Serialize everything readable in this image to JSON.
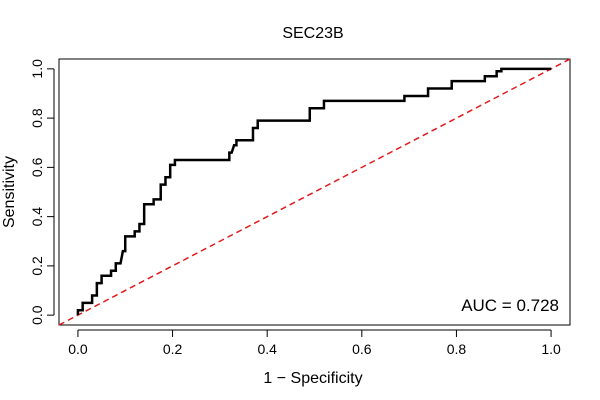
{
  "chart_data": {
    "type": "line",
    "title": "SEC23B",
    "xlabel": "1 − Specificity",
    "ylabel": "Sensitivity",
    "xlim": [
      -0.04,
      1.04
    ],
    "ylim": [
      -0.04,
      1.04
    ],
    "x_ticks": [
      0.0,
      0.2,
      0.4,
      0.6,
      0.8,
      1.0
    ],
    "y_ticks": [
      0.0,
      0.2,
      0.4,
      0.6,
      0.8,
      1.0
    ],
    "x_tick_labels": [
      "0.0",
      "0.2",
      "0.4",
      "0.6",
      "0.8",
      "1.0"
    ],
    "y_tick_labels": [
      "0.0",
      "0.2",
      "0.4",
      "0.6",
      "0.8",
      "1.0"
    ],
    "grid": false,
    "annotation": "AUC = 0.728",
    "series": [
      {
        "color": "#000000",
        "style": "solid",
        "x": [
          0.0,
          0.0,
          0.01,
          0.01,
          0.03,
          0.03,
          0.04,
          0.04,
          0.05,
          0.05,
          0.07,
          0.07,
          0.08,
          0.08,
          0.09,
          0.095,
          0.1,
          0.1,
          0.12,
          0.12,
          0.13,
          0.13,
          0.14,
          0.14,
          0.16,
          0.16,
          0.175,
          0.175,
          0.185,
          0.185,
          0.195,
          0.195,
          0.205,
          0.205,
          0.215,
          0.215,
          0.32,
          0.32,
          0.325,
          0.33,
          0.335,
          0.335,
          0.37,
          0.37,
          0.38,
          0.38,
          0.49,
          0.49,
          0.495,
          0.495,
          0.52,
          0.52,
          0.69,
          0.69,
          0.74,
          0.74,
          0.79,
          0.79,
          0.86,
          0.86,
          0.885,
          0.885,
          0.895,
          0.895,
          1.0
        ],
        "y": [
          0.0,
          0.02,
          0.02,
          0.05,
          0.05,
          0.08,
          0.08,
          0.13,
          0.13,
          0.16,
          0.16,
          0.18,
          0.18,
          0.21,
          0.21,
          0.26,
          0.26,
          0.32,
          0.32,
          0.34,
          0.34,
          0.37,
          0.37,
          0.45,
          0.45,
          0.47,
          0.47,
          0.53,
          0.53,
          0.56,
          0.56,
          0.61,
          0.61,
          0.63,
          0.63,
          0.63,
          0.63,
          0.66,
          0.66,
          0.69,
          0.69,
          0.71,
          0.71,
          0.76,
          0.76,
          0.79,
          0.79,
          0.84,
          0.84,
          0.84,
          0.84,
          0.87,
          0.87,
          0.89,
          0.89,
          0.92,
          0.92,
          0.95,
          0.95,
          0.97,
          0.97,
          0.99,
          0.99,
          1.0,
          1.0
        ]
      },
      {
        "color": "#e31a1c",
        "style": "dashed",
        "x": [
          -0.04,
          1.04
        ],
        "y": [
          -0.04,
          1.04
        ]
      }
    ]
  }
}
